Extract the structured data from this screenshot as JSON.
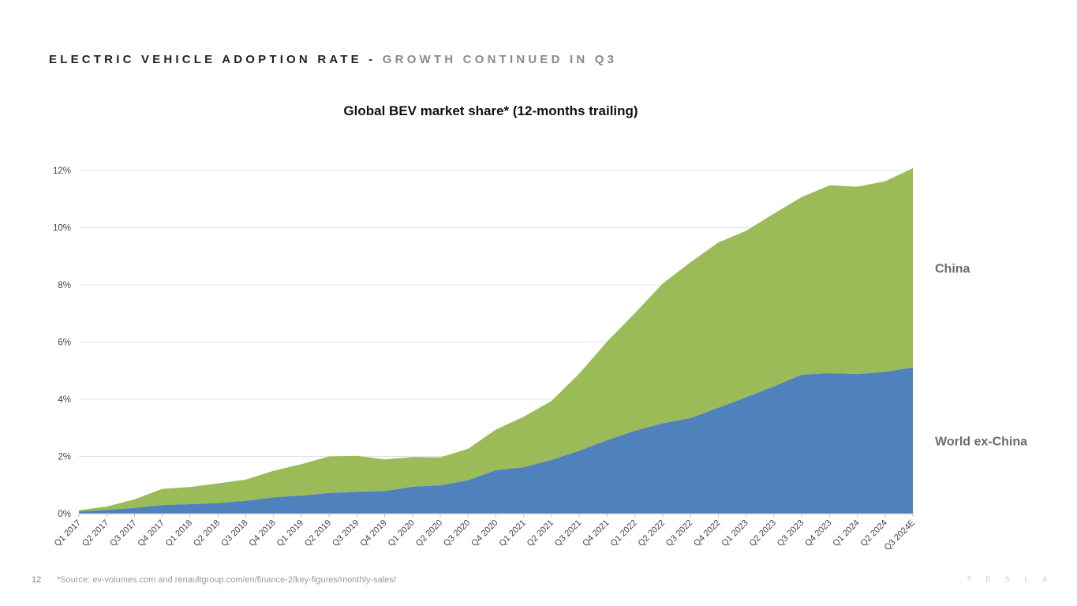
{
  "slide": {
    "title_main": "ELECTRIC VEHICLE ADOPTION RATE",
    "title_sep": "-",
    "title_sub": "GROWTH CONTINUED IN Q3",
    "page_number": "12",
    "source": "*Source: ev-volumes.com and renaultgroup.com/en/finance-2/key-figures/monthly-sales/",
    "brand": "TESLA"
  },
  "colors": {
    "china": "#9bbb59",
    "world_ex_china": "#4f81bd",
    "grid": "#e3e3e3",
    "tick_text": "#444444",
    "series_label": "#6b6b6b"
  },
  "chart_data": {
    "type": "area",
    "stacked": true,
    "title": "Global BEV market share* (12-months trailing)",
    "xlabel": "",
    "ylabel": "",
    "ylim": [
      0,
      12
    ],
    "yticks": [
      0,
      2,
      4,
      6,
      8,
      10,
      12
    ],
    "ytick_labels": [
      "0%",
      "2%",
      "4%",
      "6%",
      "8%",
      "10%",
      "12%"
    ],
    "grid": true,
    "categories": [
      "Q1 2017",
      "Q2 2017",
      "Q3 2017",
      "Q4 2017",
      "Q1 2018",
      "Q2 2018",
      "Q3 2018",
      "Q4 2018",
      "Q1 2019",
      "Q2 2019",
      "Q3 2019",
      "Q4 2019",
      "Q1 2020",
      "Q2 2020",
      "Q3 2020",
      "Q4 2020",
      "Q1 2021",
      "Q2 2021",
      "Q3 2021",
      "Q4 2021",
      "Q1 2022",
      "Q2 2022",
      "Q3 2022",
      "Q4 2022",
      "Q1 2023",
      "Q2 2023",
      "Q3 2023",
      "Q4 2023",
      "Q1 2024",
      "Q2 2024",
      "Q3 2024E"
    ],
    "series": [
      {
        "name": "World ex-China",
        "values": [
          0.08,
          0.13,
          0.2,
          0.3,
          0.33,
          0.37,
          0.45,
          0.57,
          0.63,
          0.72,
          0.77,
          0.79,
          0.94,
          0.99,
          1.17,
          1.52,
          1.62,
          1.88,
          2.2,
          2.57,
          2.9,
          3.16,
          3.34,
          3.7,
          4.07,
          4.45,
          4.86,
          4.91,
          4.88,
          4.96,
          5.11
        ]
      },
      {
        "name": "China",
        "values": [
          0.04,
          0.12,
          0.3,
          0.57,
          0.6,
          0.69,
          0.74,
          0.93,
          1.1,
          1.28,
          1.25,
          1.11,
          1.04,
          0.98,
          1.1,
          1.42,
          1.77,
          2.06,
          2.7,
          3.45,
          4.11,
          4.89,
          5.45,
          5.78,
          5.82,
          6.04,
          6.21,
          6.57,
          6.55,
          6.66,
          6.97
        ]
      }
    ],
    "legend": "right, inline labels"
  }
}
